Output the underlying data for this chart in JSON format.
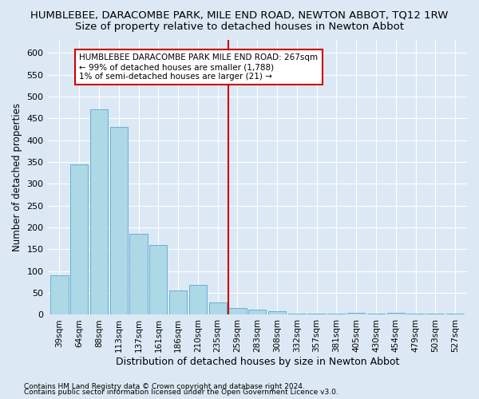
{
  "title": "HUMBLEBEE, DARACOMBE PARK, MILE END ROAD, NEWTON ABBOT, TQ12 1RW",
  "subtitle": "Size of property relative to detached houses in Newton Abbot",
  "xlabel": "Distribution of detached houses by size in Newton Abbot",
  "ylabel": "Number of detached properties",
  "footer1": "Contains HM Land Registry data © Crown copyright and database right 2024.",
  "footer2": "Contains public sector information licensed under the Open Government Licence v3.0.",
  "categories": [
    "39sqm",
    "64sqm",
    "88sqm",
    "113sqm",
    "137sqm",
    "161sqm",
    "186sqm",
    "210sqm",
    "235sqm",
    "259sqm",
    "283sqm",
    "308sqm",
    "332sqm",
    "357sqm",
    "381sqm",
    "405sqm",
    "430sqm",
    "454sqm",
    "479sqm",
    "503sqm",
    "527sqm"
  ],
  "values": [
    90,
    345,
    470,
    430,
    185,
    160,
    55,
    68,
    28,
    15,
    12,
    8,
    2,
    2,
    2,
    5,
    2,
    5,
    2,
    2,
    2
  ],
  "bar_color": "#add8e6",
  "bar_edge_color": "#6aaed6",
  "vline_x": 8.55,
  "vline_color": "#cc0000",
  "annotation_text": "HUMBLEBEE DARACOMBE PARK MILE END ROAD: 267sqm\n← 99% of detached houses are smaller (1,788)\n1% of semi-detached houses are larger (21) →",
  "annotation_box_edgecolor": "#cc0000",
  "annotation_box_facecolor": "white",
  "ylim": [
    0,
    630
  ],
  "yticks": [
    0,
    50,
    100,
    150,
    200,
    250,
    300,
    350,
    400,
    450,
    500,
    550,
    600
  ],
  "bg_color": "#dce9f5",
  "plot_bg": "#dce9f5",
  "grid_color": "white",
  "title_fontsize": 9.5,
  "subtitle_fontsize": 9.5,
  "ylabel_fontsize": 8.5,
  "xlabel_fontsize": 9,
  "tick_fontsize": 8,
  "xtick_fontsize": 7.5,
  "footer_fontsize": 6.5,
  "annot_fontsize": 7.5
}
